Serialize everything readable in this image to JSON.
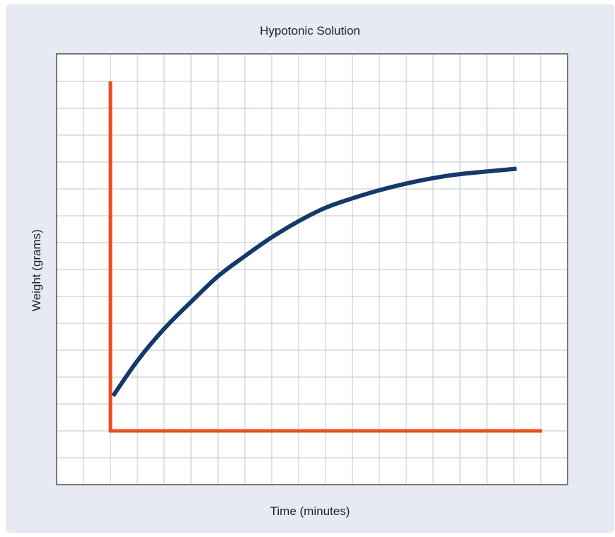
{
  "chart_data": {
    "type": "line",
    "title": "Hypotonic Solution",
    "xlabel": "Time (minutes)",
    "ylabel": "Weight (grams)",
    "grid": true,
    "x_ticks_shown": false,
    "y_ticks_shown": false,
    "xlim": [
      0,
      16
    ],
    "ylim": [
      0,
      13
    ],
    "series": [
      {
        "color": "#16396b",
        "x": [
          0.1,
          1,
          2,
          3,
          4,
          5,
          6,
          7,
          8,
          9,
          10,
          11,
          12,
          13,
          15.1
        ],
        "y": [
          1.3,
          2.6,
          3.8,
          4.8,
          5.75,
          6.5,
          7.2,
          7.8,
          8.3,
          8.65,
          8.95,
          9.2,
          9.4,
          9.55,
          9.75
        ]
      }
    ]
  },
  "colors": {
    "background": "#e7e9f3",
    "plot_background": "#ffffff",
    "grid": "#c3c6cd",
    "frame": "#7a7a7a",
    "axes": "#e8511f",
    "line": "#16396b"
  }
}
